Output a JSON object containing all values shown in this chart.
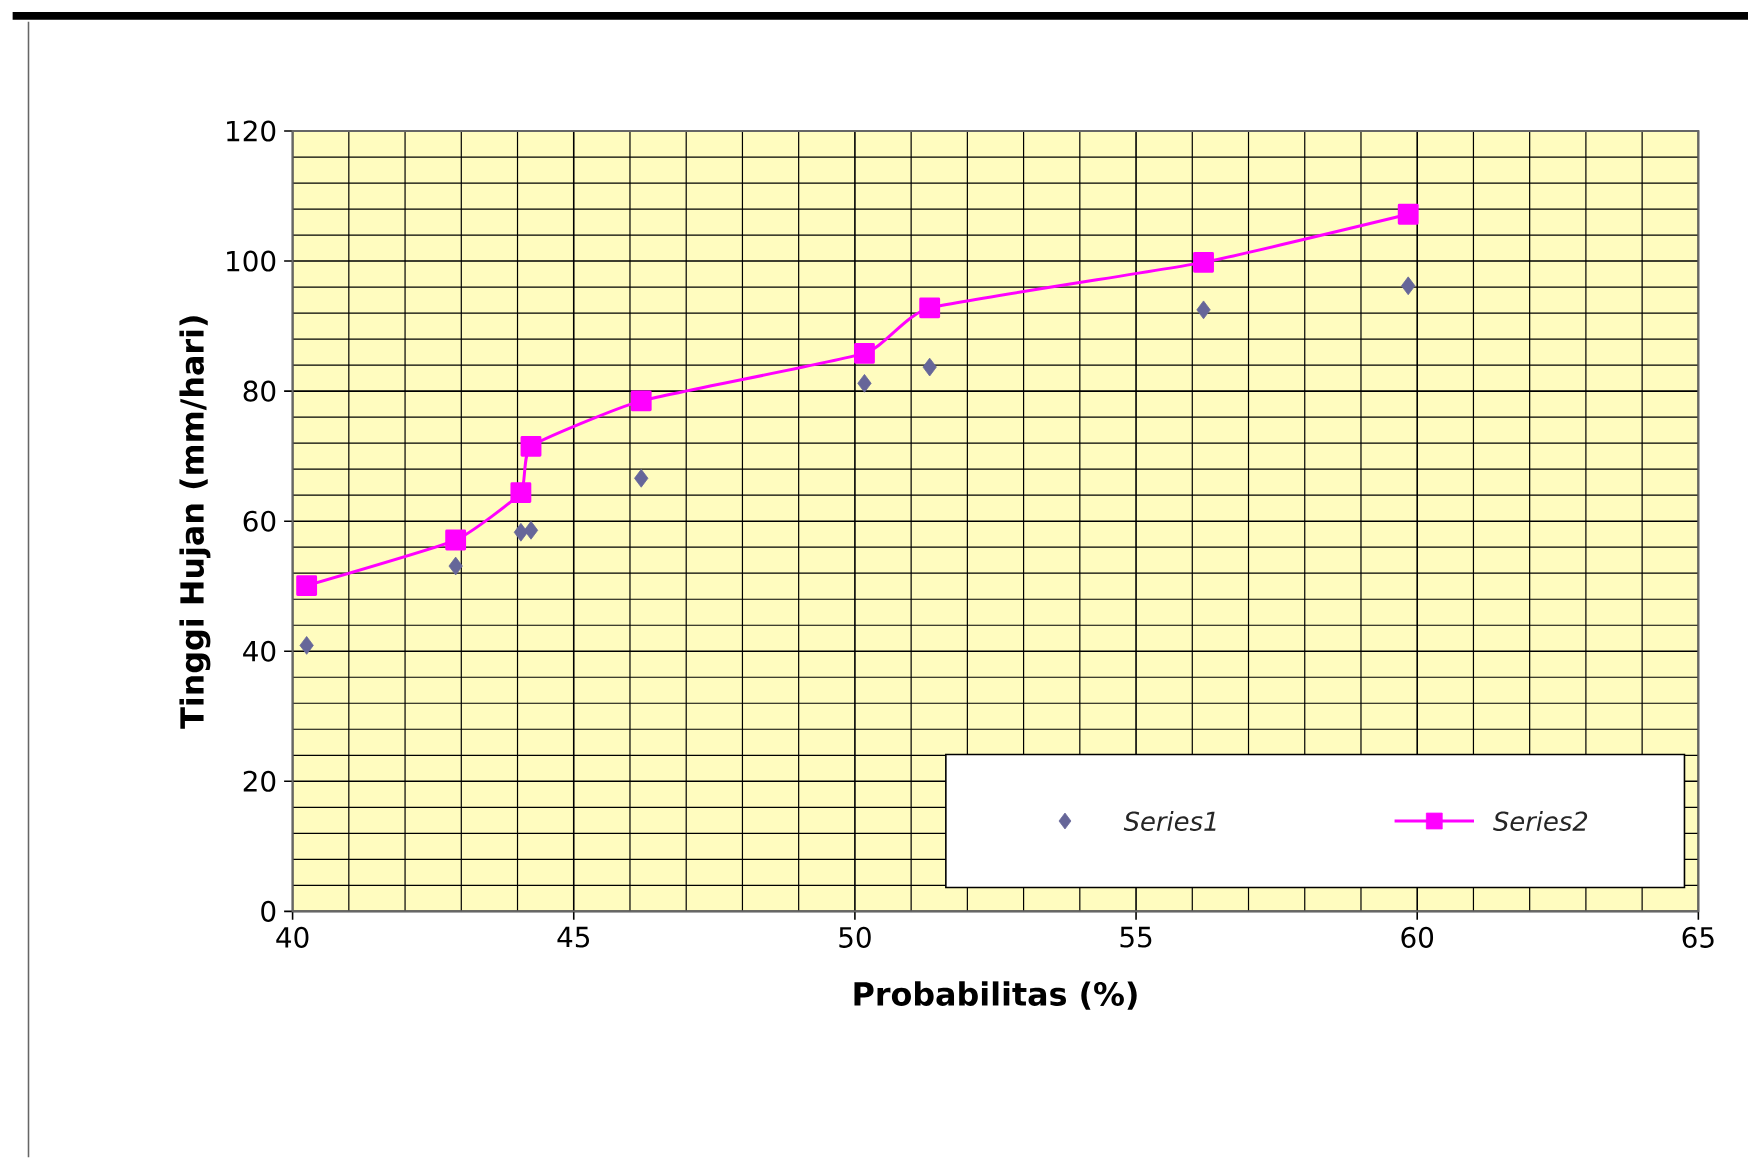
{
  "chart_data": {
    "type": "scatter",
    "xlabel": "Probabilitas (%)",
    "ylabel": "Tinggi Hujan (mm/hari)",
    "xlim": [
      40,
      65
    ],
    "xticks": [
      40,
      45,
      50,
      55,
      60,
      65
    ],
    "ylim": [
      0,
      120
    ],
    "yticks": [
      0,
      20,
      40,
      60,
      80,
      100,
      120
    ],
    "grid": true,
    "legend": "bottom right",
    "series": [
      {
        "name": "Series1",
        "marker": "diamond",
        "color": "#666699",
        "x": [
          40.25,
          42.9,
          44.06,
          44.24,
          46.2,
          50.17,
          51.33,
          56.2,
          59.84
        ],
        "values": [
          40.9,
          53.1,
          58.3,
          58.6,
          66.6,
          81.2,
          83.7,
          92.5,
          96.2
        ]
      },
      {
        "name": "Series2",
        "type": "line",
        "marker": "square",
        "color": "#ff00ff",
        "x": [
          40.25,
          42.9,
          44.06,
          44.24,
          46.2,
          50.17,
          51.33,
          56.2,
          59.84
        ],
        "values": [
          50.1,
          57.1,
          64.4,
          71.5,
          78.5,
          85.8,
          92.8,
          99.8,
          107.2
        ]
      }
    ]
  }
}
